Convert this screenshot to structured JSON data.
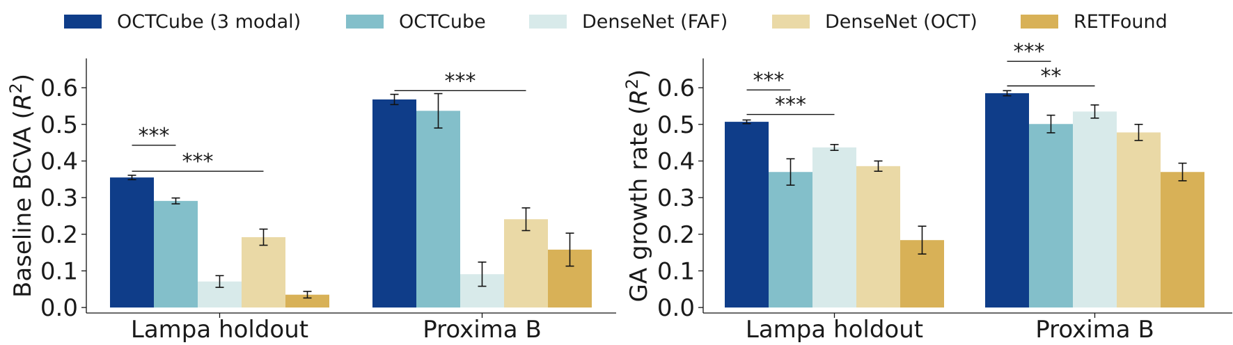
{
  "legend": [
    {
      "name": "OCTCube (3 modal)",
      "color": "#0f3d89"
    },
    {
      "name": "OCTCube",
      "color": "#83bfca"
    },
    {
      "name": "DenseNet (FAF)",
      "color": "#d8eaea"
    },
    {
      "name": "DenseNet (OCT)",
      "color": "#ead9a6"
    },
    {
      "name": "RETFound",
      "color": "#d8b157"
    }
  ],
  "chart_data": [
    {
      "type": "bar",
      "categories": [
        "Lampa holdout",
        "Proxima B"
      ],
      "xlabel": "",
      "ylabel": "Baseline BCVA ($R^2$)",
      "ylim": [
        -0.015,
        0.68
      ],
      "yticks": [
        "0.0",
        "0.1",
        "0.2",
        "0.3",
        "0.4",
        "0.5",
        "0.6"
      ],
      "grid": false,
      "series": [
        {
          "name": "OCTCube (3 modal)",
          "values": [
            0.355,
            0.568
          ],
          "errors": [
            0.006,
            0.014
          ]
        },
        {
          "name": "OCTCube",
          "values": [
            0.291,
            0.537
          ],
          "errors": [
            0.008,
            0.047
          ]
        },
        {
          "name": "DenseNet (FAF)",
          "values": [
            0.071,
            0.091
          ],
          "errors": [
            0.016,
            0.033
          ]
        },
        {
          "name": "DenseNet (OCT)",
          "values": [
            0.192,
            0.241
          ],
          "errors": [
            0.022,
            0.031
          ]
        },
        {
          "name": "RETFound",
          "values": [
            0.035,
            0.158
          ],
          "errors": [
            0.009,
            0.045
          ]
        }
      ],
      "annotations": [
        {
          "text": "***",
          "category": 0,
          "from": 0,
          "to": 1,
          "y": 0.443
        },
        {
          "text": "***",
          "category": 0,
          "from": 0,
          "to": 3,
          "y": 0.372
        },
        {
          "text": "***",
          "category": 1,
          "from": 0,
          "to": 3,
          "y": 0.592
        }
      ]
    },
    {
      "type": "bar",
      "categories": [
        "Lampa holdout",
        "Proxima B"
      ],
      "xlabel": "",
      "ylabel": "GA growth rate ($R^2$)",
      "ylim": [
        -0.015,
        0.68
      ],
      "yticks": [
        "0.0",
        "0.1",
        "0.2",
        "0.3",
        "0.4",
        "0.5",
        "0.6"
      ],
      "grid": false,
      "series": [
        {
          "name": "OCTCube (3 modal)",
          "values": [
            0.507,
            0.585
          ],
          "errors": [
            0.005,
            0.007
          ]
        },
        {
          "name": "OCTCube",
          "values": [
            0.37,
            0.501
          ],
          "errors": [
            0.036,
            0.024
          ]
        },
        {
          "name": "DenseNet (FAF)",
          "values": [
            0.437,
            0.535
          ],
          "errors": [
            0.008,
            0.018
          ]
        },
        {
          "name": "DenseNet (OCT)",
          "values": [
            0.386,
            0.478
          ],
          "errors": [
            0.014,
            0.022
          ]
        },
        {
          "name": "RETFound",
          "values": [
            0.184,
            0.37
          ],
          "errors": [
            0.038,
            0.024
          ]
        }
      ],
      "annotations": [
        {
          "text": "***",
          "category": 0,
          "from": 0,
          "to": 1,
          "y": 0.594
        },
        {
          "text": "***",
          "category": 0,
          "from": 0,
          "to": 2,
          "y": 0.527
        },
        {
          "text": "***",
          "category": 1,
          "from": 0,
          "to": 1,
          "y": 0.672
        },
        {
          "text": "**",
          "category": 1,
          "from": 0,
          "to": 2,
          "y": 0.605
        }
      ]
    }
  ]
}
